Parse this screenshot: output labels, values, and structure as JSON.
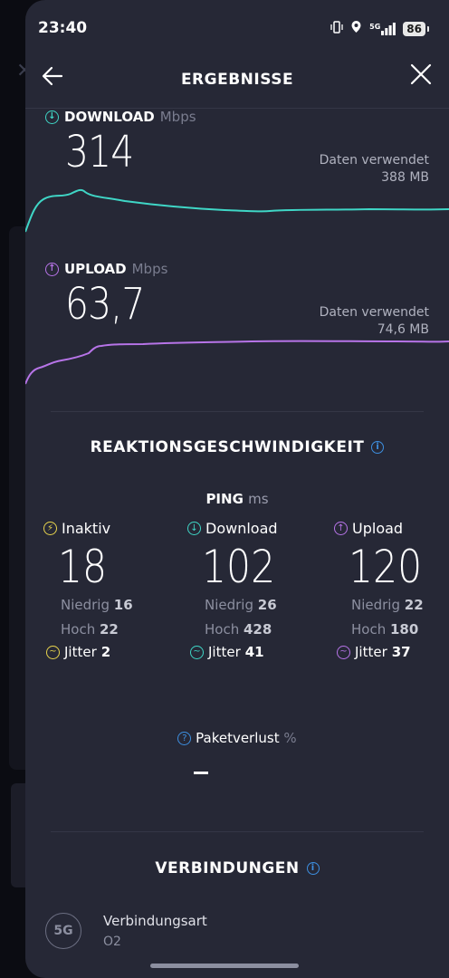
{
  "status_bar": {
    "time": "23:40",
    "network": "5G",
    "battery": "86"
  },
  "header": {
    "title": "ERGEBNISSE"
  },
  "download": {
    "label": "DOWNLOAD",
    "unit": "Mbps",
    "value": "314",
    "used_label": "Daten verwendet",
    "used_value": "388 MB"
  },
  "upload": {
    "label": "UPLOAD",
    "unit": "Mbps",
    "value": "63,7",
    "used_label": "Daten verwendet",
    "used_value": "74,6 MB"
  },
  "responsiveness": {
    "title": "REAKTIONSGESCHWINDIGKEIT"
  },
  "ping": {
    "label": "PING",
    "unit": "ms",
    "columns": [
      {
        "label": "Inaktiv",
        "value": "18",
        "low_label": "Niedrig",
        "low": "16",
        "high_label": "Hoch",
        "high": "22",
        "jitter_label": "Jitter",
        "jitter": "2",
        "color": "#e8d44d"
      },
      {
        "label": "Download",
        "value": "102",
        "low_label": "Niedrig",
        "low": "26",
        "high_label": "Hoch",
        "high": "428",
        "jitter_label": "Jitter",
        "jitter": "41",
        "color": "#3fd6c6"
      },
      {
        "label": "Upload",
        "value": "120",
        "low_label": "Niedrig",
        "low": "22",
        "high_label": "Hoch",
        "high": "180",
        "jitter_label": "Jitter",
        "jitter": "37",
        "color": "#b774e8"
      }
    ]
  },
  "packet_loss": {
    "label": "Paketverlust",
    "unit": "%",
    "value": "–"
  },
  "connections": {
    "title": "VERBINDUNGEN",
    "type_label": "Verbindungsart",
    "type_value": "O2",
    "icon_text": "5G"
  },
  "colors": {
    "download": "#3fd6c6",
    "upload": "#b774e8",
    "info": "#3d8fe0",
    "background": "#262836"
  }
}
